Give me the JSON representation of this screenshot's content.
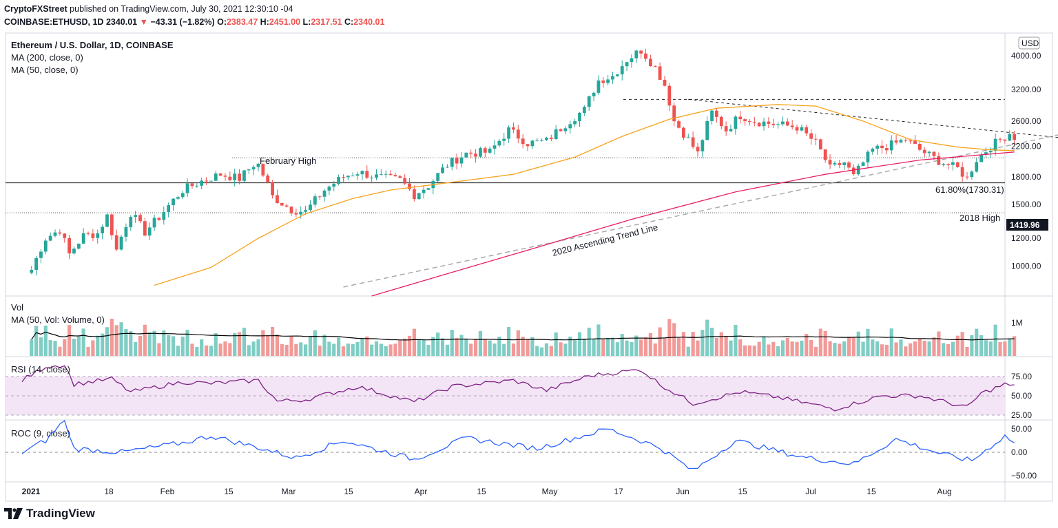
{
  "header": {
    "publisher": "CryptoFXStreet",
    "published_text": "published on TradingView.com, July 30, 2021 12:30:10 -04",
    "symbol": "COINBASE:ETHUSD, 1D",
    "price": "2340.01",
    "change": "−43.31 (−1.82%)",
    "o_label": "O:",
    "o_value": "2383.47",
    "h_label": "H:",
    "h_value": "2451.00",
    "l_label": "L:",
    "l_value": "2317.51",
    "c_label": "C:",
    "c_value": "2340.01"
  },
  "legend": {
    "title": "Ethereum / U.S. Dollar, 1D, COINBASE",
    "ma200": "MA (200, close, 0)",
    "ma50": "MA (50, close, 0)",
    "vol": "Vol",
    "vol_ma": "MA (50, Vol: Volume, 0)",
    "rsi": "RSI (14, close)",
    "roc": "ROC (9, close)"
  },
  "currency_badge": "USD",
  "annotations": {
    "february_high": "February High",
    "fib": "61.80%(1730.31)",
    "high_2018": "2018 High",
    "trend_line": "2020 Ascending Trend Line",
    "price_tag": "1419.96"
  },
  "price_axis_labels": [
    "4000.00",
    "3200.00",
    "2600.00",
    "2200.00",
    "1800.00",
    "1500.00",
    "1200.00",
    "1000.00"
  ],
  "volume_axis_labels": [
    "1M"
  ],
  "rsi_axis_labels": [
    "75.00",
    "50.00",
    "25.00"
  ],
  "roc_axis_labels": [
    "50.00",
    "0.00",
    "−50.00"
  ],
  "date_labels": [
    "2021",
    "18",
    "Feb",
    "15",
    "Mar",
    "15",
    "Apr",
    "15",
    "May",
    "17",
    "Jun",
    "15",
    "Jul",
    "15",
    "Aug"
  ],
  "footer": {
    "brand": "TradingView"
  },
  "colors": {
    "up": "#26a69a",
    "down": "#ef5350",
    "ma50": "#f7a21b",
    "ma200": "#e91e63",
    "rsi": "#7e1f86",
    "rsi_band": "#f3e5f5",
    "roc": "#2962ff",
    "vol_ma": "#000000"
  },
  "chart_data": {
    "type": "candlestick",
    "title": "Ethereum / U.S. Dollar, 1D, COINBASE",
    "y_scale": "log",
    "ylim": [
      820,
      4400
    ],
    "x_range": [
      "2021-01-01",
      "2021-08-10"
    ],
    "levels": {
      "february_high": 2040,
      "fib_61_8": 1730.31,
      "high_2018": 1419.96,
      "resistance_top": 3000
    },
    "trend_line_2020": {
      "from": [
        "2021-03-10",
        870
      ],
      "to": [
        "2021-08-10",
        2400
      ]
    },
    "descending_line": {
      "from": [
        "2021-05-22",
        3000
      ],
      "to": [
        "2021-08-10",
        2320
      ]
    },
    "price_path": [
      [
        "2021-01-03",
        975
      ],
      [
        "2021-01-06",
        1200
      ],
      [
        "2021-01-09",
        1270
      ],
      [
        "2021-01-11",
        1080
      ],
      [
        "2021-01-14",
        1220
      ],
      [
        "2021-01-17",
        1240
      ],
      [
        "2021-01-19",
        1390
      ],
      [
        "2021-01-21",
        1110
      ],
      [
        "2021-01-24",
        1420
      ],
      [
        "2021-01-27",
        1250
      ],
      [
        "2021-01-30",
        1380
      ],
      [
        "2021-02-04",
        1650
      ],
      [
        "2021-02-08",
        1750
      ],
      [
        "2021-02-12",
        1830
      ],
      [
        "2021-02-16",
        1780
      ],
      [
        "2021-02-19",
        1950
      ],
      [
        "2021-02-20",
        1950
      ],
      [
        "2021-02-23",
        1580
      ],
      [
        "2021-02-27",
        1450
      ],
      [
        "2021-03-02",
        1430
      ],
      [
        "2021-03-06",
        1650
      ],
      [
        "2021-03-10",
        1800
      ],
      [
        "2021-03-13",
        1860
      ],
      [
        "2021-03-17",
        1800
      ],
      [
        "2021-03-22",
        1760
      ],
      [
        "2021-03-25",
        1600
      ],
      [
        "2021-03-28",
        1700
      ],
      [
        "2021-04-01",
        1950
      ],
      [
        "2021-04-05",
        2100
      ],
      [
        "2021-04-10",
        2120
      ],
      [
        "2021-04-14",
        2450
      ],
      [
        "2021-04-18",
        2250
      ],
      [
        "2021-04-22",
        2280
      ],
      [
        "2021-04-26",
        2550
      ],
      [
        "2021-04-30",
        2800
      ],
      [
        "2021-05-03",
        3400
      ],
      [
        "2021-05-06",
        3500
      ],
      [
        "2021-05-09",
        3900
      ],
      [
        "2021-05-12",
        4150
      ],
      [
        "2021-05-15",
        3700
      ],
      [
        "2021-05-17",
        3300
      ],
      [
        "2021-05-19",
        2600
      ],
      [
        "2021-05-21",
        2400
      ],
      [
        "2021-05-24",
        2100
      ],
      [
        "2021-05-27",
        2750
      ],
      [
        "2021-05-30",
        2450
      ],
      [
        "2021-06-02",
        2700
      ],
      [
        "2021-06-05",
        2600
      ],
      [
        "2021-06-09",
        2550
      ],
      [
        "2021-06-14",
        2500
      ],
      [
        "2021-06-18",
        2250
      ],
      [
        "2021-06-21",
        1900
      ],
      [
        "2021-06-24",
        1980
      ],
      [
        "2021-06-26",
        1800
      ],
      [
        "2021-06-30",
        2150
      ],
      [
        "2021-07-03",
        2200
      ],
      [
        "2021-07-07",
        2300
      ],
      [
        "2021-07-10",
        2150
      ],
      [
        "2021-07-14",
        2000
      ],
      [
        "2021-07-18",
        1900
      ],
      [
        "2021-07-20",
        1780
      ],
      [
        "2021-07-22",
        2020
      ],
      [
        "2021-07-25",
        2200
      ],
      [
        "2021-07-27",
        2300
      ],
      [
        "2021-07-29",
        2400
      ],
      [
        "2021-07-30",
        2340
      ]
    ],
    "ma50": [
      [
        "2021-01-29",
        880
      ],
      [
        "2021-02-10",
        990
      ],
      [
        "2021-02-20",
        1200
      ],
      [
        "2021-03-02",
        1410
      ],
      [
        "2021-03-12",
        1560
      ],
      [
        "2021-03-20",
        1650
      ],
      [
        "2021-04-01",
        1730
      ],
      [
        "2021-04-15",
        1830
      ],
      [
        "2021-04-28",
        2050
      ],
      [
        "2021-05-08",
        2350
      ],
      [
        "2021-05-18",
        2630
      ],
      [
        "2021-05-28",
        2830
      ],
      [
        "2021-06-10",
        2900
      ],
      [
        "2021-06-18",
        2870
      ],
      [
        "2021-06-28",
        2600
      ],
      [
        "2021-07-08",
        2300
      ],
      [
        "2021-07-18",
        2190
      ],
      [
        "2021-07-25",
        2150
      ],
      [
        "2021-07-30",
        2140
      ]
    ],
    "ma200": [
      [
        "2021-03-16",
        820
      ],
      [
        "2021-04-01",
        950
      ],
      [
        "2021-04-20",
        1130
      ],
      [
        "2021-05-10",
        1360
      ],
      [
        "2021-06-01",
        1630
      ],
      [
        "2021-06-20",
        1830
      ],
      [
        "2021-07-10",
        2010
      ],
      [
        "2021-07-30",
        2120
      ]
    ],
    "volume_note": "relative daily volume bars with 50-day volume MA",
    "rsi_path": [
      [
        "2021-01-01",
        70
      ],
      [
        "2021-01-06",
        88
      ],
      [
        "2021-01-10",
        90
      ],
      [
        "2021-01-12",
        65
      ],
      [
        "2021-01-20",
        72
      ],
      [
        "2021-01-24",
        55
      ],
      [
        "2021-02-04",
        68
      ],
      [
        "2021-02-10",
        66
      ],
      [
        "2021-02-20",
        70
      ],
      [
        "2021-02-24",
        43
      ],
      [
        "2021-03-02",
        45
      ],
      [
        "2021-03-13",
        62
      ],
      [
        "2021-03-25",
        42
      ],
      [
        "2021-04-02",
        62
      ],
      [
        "2021-04-15",
        70
      ],
      [
        "2021-04-22",
        57
      ],
      [
        "2021-05-01",
        76
      ],
      [
        "2021-05-12",
        84
      ],
      [
        "2021-05-16",
        65
      ],
      [
        "2021-05-23",
        40
      ],
      [
        "2021-06-02",
        55
      ],
      [
        "2021-06-10",
        48
      ],
      [
        "2021-06-22",
        33
      ],
      [
        "2021-07-02",
        50
      ],
      [
        "2021-07-10",
        50
      ],
      [
        "2021-07-20",
        35
      ],
      [
        "2021-07-23",
        53
      ],
      [
        "2021-07-28",
        65
      ],
      [
        "2021-07-30",
        62
      ]
    ],
    "roc_path": [
      [
        "2021-01-01",
        0
      ],
      [
        "2021-01-06",
        25
      ],
      [
        "2021-01-10",
        70
      ],
      [
        "2021-01-12",
        8
      ],
      [
        "2021-01-22",
        0
      ],
      [
        "2021-02-04",
        20
      ],
      [
        "2021-02-10",
        35
      ],
      [
        "2021-02-20",
        10
      ],
      [
        "2021-02-28",
        -12
      ],
      [
        "2021-03-10",
        25
      ],
      [
        "2021-03-25",
        -15
      ],
      [
        "2021-04-05",
        30
      ],
      [
        "2021-04-20",
        8
      ],
      [
        "2021-05-05",
        50
      ],
      [
        "2021-05-16",
        10
      ],
      [
        "2021-05-23",
        -40
      ],
      [
        "2021-06-01",
        25
      ],
      [
        "2021-06-15",
        -10
      ],
      [
        "2021-06-26",
        -25
      ],
      [
        "2021-07-05",
        28
      ],
      [
        "2021-07-15",
        -5
      ],
      [
        "2021-07-21",
        -18
      ],
      [
        "2021-07-28",
        35
      ],
      [
        "2021-07-30",
        20
      ]
    ]
  }
}
